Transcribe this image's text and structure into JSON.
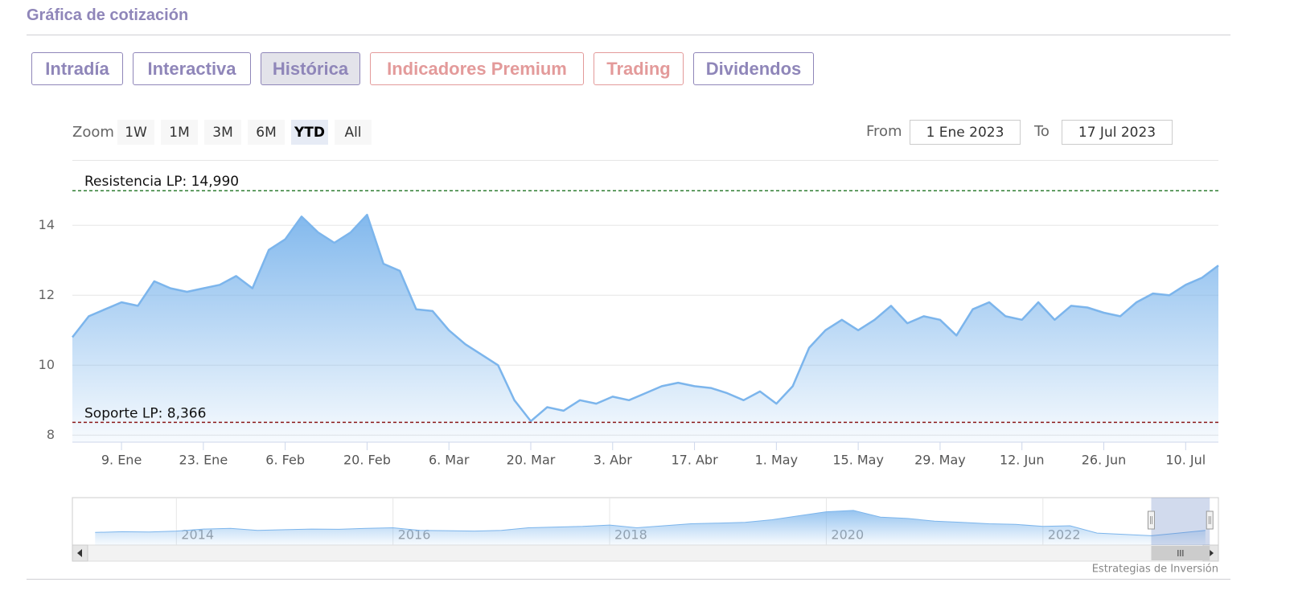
{
  "header": {
    "title": "Gráfica de cotización"
  },
  "tabs": [
    "Intradía",
    "Interactiva",
    "Histórica",
    "Indicadores Premium",
    "Trading",
    "Dividendos"
  ],
  "zoom": {
    "label": "Zoom",
    "buttons": [
      "1W",
      "1M",
      "3M",
      "6M",
      "YTD",
      "All"
    ]
  },
  "range": {
    "from_label": "From",
    "from": "1 Ene 2023",
    "to_label": "To",
    "to": "17 Jul 2023"
  },
  "credit": "Estrategias de Inversión",
  "chart_data": {
    "type": "area",
    "color": "#7cb5ec",
    "categories": [
      null,
      null,
      null,
      "9. Ene",
      null,
      null,
      null,
      null,
      "23. Ene",
      null,
      null,
      null,
      null,
      "6. Feb",
      null,
      null,
      null,
      null,
      "20. Feb",
      null,
      null,
      null,
      null,
      "6. Mar",
      null,
      null,
      null,
      null,
      "20. Mar",
      null,
      null,
      null,
      null,
      "3. Abr",
      null,
      null,
      null,
      null,
      "17. Abr",
      null,
      null,
      null,
      null,
      "1. May",
      null,
      null,
      null,
      null,
      "15. May",
      null,
      null,
      null,
      null,
      "29. May",
      null,
      null,
      null,
      null,
      "12. Jun",
      null,
      null,
      null,
      null,
      "26. Jun",
      null,
      null,
      null,
      null,
      "10. Jul",
      null,
      null
    ],
    "values": [
      10.8,
      11.4,
      11.6,
      11.8,
      11.7,
      12.4,
      12.2,
      12.1,
      12.2,
      12.3,
      12.55,
      12.2,
      13.3,
      13.6,
      14.25,
      13.8,
      13.5,
      13.8,
      14.3,
      12.9,
      12.7,
      11.6,
      11.55,
      11.0,
      10.6,
      10.3,
      10.0,
      9.0,
      8.4,
      8.8,
      8.7,
      9.0,
      8.9,
      9.1,
      9.0,
      9.2,
      9.4,
      9.5,
      9.4,
      9.35,
      9.2,
      9.0,
      9.25,
      8.9,
      9.4,
      10.5,
      11.0,
      11.3,
      11.0,
      11.3,
      11.7,
      11.2,
      11.4,
      11.3,
      10.85,
      11.6,
      11.8,
      11.4,
      11.3,
      11.8,
      11.3,
      11.7,
      11.65,
      11.5,
      11.4,
      11.8,
      12.05,
      12.0,
      12.3,
      12.5,
      12.85
    ],
    "ylim": [
      7.8,
      15.8
    ],
    "yticks": [
      8,
      10,
      12,
      14
    ],
    "grid": true,
    "reference_lines": [
      {
        "value": 14.99,
        "label": "Resistencia LP: 14,990",
        "color": "#2e7d32"
      },
      {
        "value": 8.366,
        "label": "Soporte LP: 8,366",
        "color": "#8b1a1a"
      }
    ],
    "navigator": {
      "x": [
        2013.25,
        2013.5,
        2013.75,
        2014,
        2014.25,
        2014.5,
        2014.75,
        2015,
        2015.25,
        2015.5,
        2015.75,
        2016,
        2016.25,
        2016.5,
        2016.75,
        2017,
        2017.25,
        2017.5,
        2017.75,
        2018,
        2018.25,
        2018.5,
        2018.75,
        2019,
        2019.25,
        2019.5,
        2019.75,
        2020,
        2020.25,
        2020.5,
        2020.75,
        2021,
        2021.25,
        2021.5,
        2021.75,
        2022,
        2022.25,
        2022.5,
        2022.75,
        2023,
        2023.25,
        2023.5
      ],
      "values": [
        9.5,
        10,
        9.8,
        10.5,
        12,
        12.5,
        11,
        11.5,
        12,
        11.8,
        12.5,
        13,
        11,
        10.8,
        10.5,
        11,
        13,
        13.5,
        14,
        15,
        13,
        14.5,
        16,
        16.5,
        17,
        19,
        22,
        25,
        26,
        21,
        20,
        18,
        17,
        16,
        15.5,
        14,
        14.5,
        9,
        8,
        7,
        9,
        11
      ],
      "xlim": [
        2013.04,
        2023.62
      ],
      "ylim": [
        0,
        35
      ],
      "xticks": [
        2014,
        2016,
        2018,
        2020,
        2022
      ],
      "selection": [
        2023.0,
        2023.54
      ]
    }
  }
}
